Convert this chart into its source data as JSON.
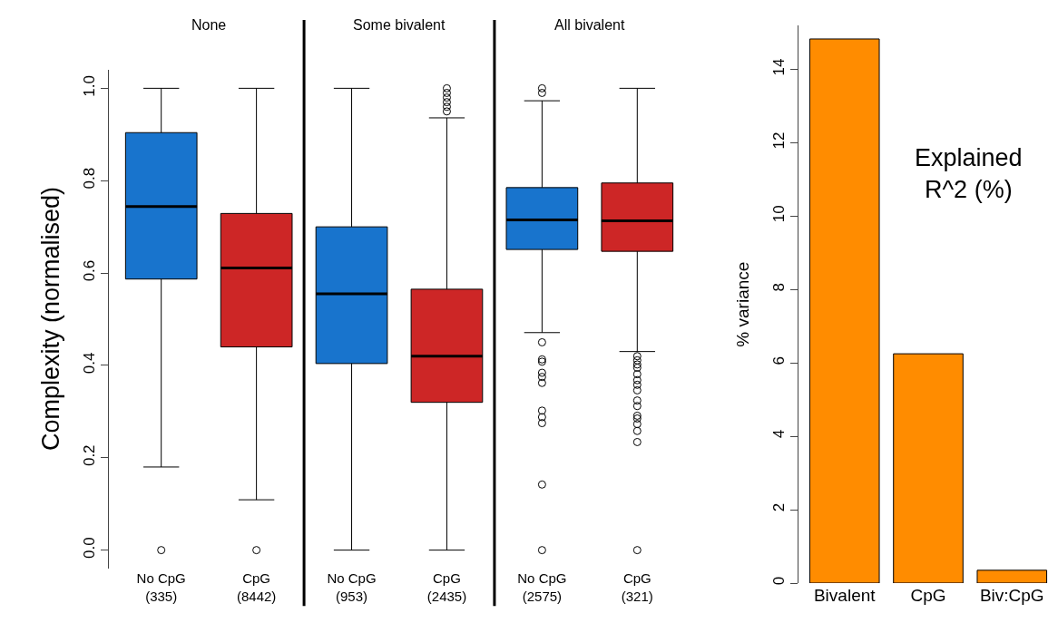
{
  "chart_data": [
    {
      "type": "box",
      "ylabel": "Complexity (normalised)",
      "categories": [
        "No CpG\n(335)",
        "CpG\n(8442)",
        "No CpG\n(953)",
        "CpG\n(2435)",
        "No CpG\n(2575)",
        "CpG\n(321)"
      ],
      "colors": [
        "#1874cd",
        "#cd2626",
        "#1874cd",
        "#cd2626",
        "#1874cd",
        "#cd2626"
      ],
      "boxes": [
        {
          "low": 0.18,
          "q1": 0.587,
          "median": 0.744,
          "q3": 0.904,
          "high": 1.0,
          "outliers": [
            0
          ]
        },
        {
          "low": 0.109,
          "q1": 0.44,
          "median": 0.611,
          "q3": 0.729,
          "high": 1.0,
          "outliers": [
            0
          ]
        },
        {
          "low": 0,
          "q1": 0.404,
          "median": 0.555,
          "q3": 0.7,
          "high": 1.0
        },
        {
          "low": 0,
          "q1": 0.32,
          "median": 0.42,
          "q3": 0.565,
          "high": 0.936,
          "outliers": [
            0.95,
            0.96,
            0.97,
            0.98,
            0.99,
            1.0
          ]
        },
        {
          "low": 0.471,
          "q1": 0.651,
          "median": 0.715,
          "q3": 0.785,
          "high": 0.973,
          "outliers": [
            1.0,
            0.99,
            0.45,
            0.413,
            0.408,
            0.384,
            0.375,
            0.362,
            0.302,
            0.288,
            0.275,
            0.142,
            0
          ]
        },
        {
          "low": 0.43,
          "q1": 0.647,
          "median": 0.713,
          "q3": 0.795,
          "high": 1.0,
          "outliers": [
            0.42,
            0.411,
            0.402,
            0.395,
            0.381,
            0.368,
            0.358,
            0.346,
            0.324,
            0.312,
            0.291,
            0.285,
            0.273,
            0.258,
            0.234,
            0
          ]
        }
      ],
      "ylim": [
        -0.04,
        1.04
      ],
      "yticks": [
        {
          "value": 0,
          "label": "0.0"
        },
        0.2,
        0.4,
        0.6,
        0.8,
        {
          "value": 1,
          "label": "1.0"
        }
      ],
      "annotations": [
        "None",
        "Some bivalent",
        "All bivalent"
      ],
      "marker": "circle",
      "grid": false
    },
    {
      "type": "bar",
      "ylabel": "% variance",
      "categories": [
        "Bivalent",
        "CpG",
        "Biv:CpG"
      ],
      "values": [
        14.83,
        6.25,
        0.35
      ],
      "color": "#ff8c00",
      "ylim": [
        0,
        15.2
      ],
      "yticks": [
        0,
        2,
        4,
        6,
        8,
        10,
        12,
        14
      ],
      "annotations": [
        "Explained\nR^2 (%)"
      ],
      "grid": false
    }
  ]
}
